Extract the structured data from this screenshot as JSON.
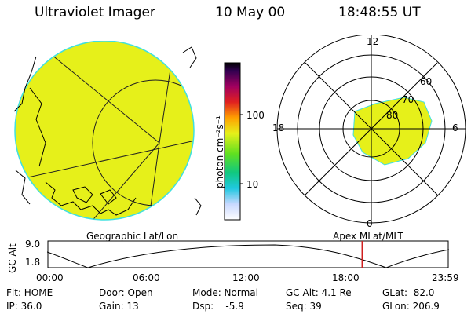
{
  "header": {
    "instrument": "Ultraviolet Imager",
    "date": "10 May 00",
    "time": "18:48:55 UT"
  },
  "colorbar": {
    "unit_label": "photon cm⁻²s⁻¹",
    "tick_labels": [
      "100",
      "10"
    ]
  },
  "polar_plot": {
    "clock_labels": [
      "12",
      "18",
      "6",
      "0"
    ],
    "lat_labels": [
      "60",
      "70",
      "80"
    ]
  },
  "orbit_strip": {
    "left_caption": "Geographic Lat/Lon",
    "right_caption": "Apex MLat/MLT",
    "axis_title": "GC Alt",
    "y_labels": [
      "9.0",
      "1.8"
    ],
    "time_labels": [
      "00:00",
      "06:00",
      "12:00",
      "18:00",
      "23:59"
    ],
    "current_time_hours": 18.81
  },
  "info": {
    "row1": [
      "Flt: HOME",
      "Door: Open",
      "Mode: Normal",
      "GC Alt: 4.1 Re",
      "GLat:  82.0"
    ],
    "row2": [
      "IP: 36.0",
      "Gain: 13",
      "Dsp:    -5.9",
      "Seq: 39",
      "GLon: 206.9"
    ]
  },
  "colors": {
    "emission": "#e6f01a",
    "limb": "#40e0e0",
    "current_time_marker": "#d02020"
  }
}
